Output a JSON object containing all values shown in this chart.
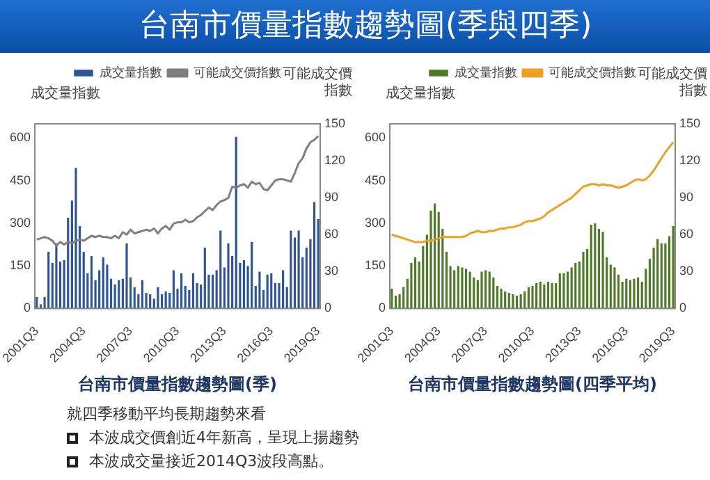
{
  "chart_data": [
    {
      "type": "bar",
      "title": "台南市價量指數趨勢圖(季)",
      "ylabel": "成交量指數",
      "y2label": "可能成交價指數",
      "annotations": [
        "台南市價量指數趨勢圖(季與四季)",
        "就四季移動平均長期趨勢來看",
        "本波成交價創近4年新高，呈現上揚趨勢",
        "本波成交量接近2014Q3波段高點。"
      ],
      "categories": [
        "2001Q3",
        null,
        null,
        null,
        null,
        null,
        null,
        null,
        null,
        null,
        null,
        null,
        "2004Q3",
        null,
        null,
        null,
        null,
        null,
        null,
        null,
        null,
        null,
        null,
        null,
        "2007Q3",
        null,
        null,
        null,
        null,
        null,
        null,
        null,
        null,
        null,
        null,
        null,
        "2010Q3",
        null,
        null,
        null,
        null,
        null,
        null,
        null,
        null,
        null,
        null,
        null,
        "2013Q3",
        null,
        null,
        null,
        null,
        null,
        null,
        null,
        null,
        null,
        null,
        null,
        "2016Q3",
        null,
        null,
        null,
        null,
        null,
        null,
        null,
        null,
        null,
        null,
        null,
        "2019Q3"
      ],
      "series": [
        {
          "name": "成交量指數",
          "color": "#2f5597",
          "values": [
            40,
            15,
            40,
            200,
            160,
            230,
            165,
            170,
            320,
            380,
            495,
            290,
            200,
            125,
            185,
            100,
            135,
            180,
            155,
            105,
            85,
            100,
            105,
            230,
            110,
            75,
            50,
            100,
            55,
            50,
            35,
            75,
            50,
            60,
            55,
            135,
            70,
            125,
            80,
            65,
            125,
            90,
            85,
            215,
            120,
            120,
            135,
            275,
            145,
            230,
            185,
            605,
            160,
            170,
            150,
            235,
            80,
            130,
            65,
            120,
            125,
            90,
            90,
            135,
            75,
            275,
            250,
            275,
            180,
            215,
            245,
            375,
            315
          ]
        },
        {
          "name": "可能成交價指數",
          "type": "line",
          "axis": "y2",
          "color": "#7f7f7f",
          "values": [
            56,
            57,
            58,
            57,
            55,
            51,
            54,
            52,
            54,
            53,
            55,
            56,
            55,
            57,
            59,
            58,
            59,
            58,
            58,
            57,
            59,
            57,
            62,
            60,
            64,
            61,
            62,
            63,
            64,
            63,
            65,
            61,
            65,
            67,
            64,
            69,
            70,
            70,
            72,
            70,
            71,
            74,
            76,
            79,
            82,
            80,
            84,
            87,
            88,
            90,
            99,
            98,
            100,
            101,
            98,
            103,
            101,
            102,
            97,
            96,
            100,
            104,
            105,
            105,
            104,
            103,
            110,
            118,
            122,
            130,
            135,
            137,
            140
          ]
        }
      ],
      "ylim": [
        0,
        650
      ],
      "yticks": [
        0,
        150,
        300,
        450,
        600
      ],
      "y2lim": [
        0,
        150
      ],
      "y2ticks": [
        0,
        30,
        60,
        90,
        120,
        150
      ],
      "legend": "top",
      "marker": "none",
      "grid": false
    },
    {
      "type": "bar",
      "title": "台南市價量指數趨勢圖(四季平均)",
      "ylabel": "成交量指數",
      "y2label": "可能成交價指數",
      "categories": [
        "2001Q3",
        null,
        null,
        null,
        null,
        null,
        null,
        null,
        null,
        null,
        null,
        null,
        "2004Q3",
        null,
        null,
        null,
        null,
        null,
        null,
        null,
        null,
        null,
        null,
        null,
        "2007Q3",
        null,
        null,
        null,
        null,
        null,
        null,
        null,
        null,
        null,
        null,
        null,
        "2010Q3",
        null,
        null,
        null,
        null,
        null,
        null,
        null,
        null,
        null,
        null,
        null,
        "2013Q3",
        null,
        null,
        null,
        null,
        null,
        null,
        null,
        null,
        null,
        null,
        null,
        "2016Q3",
        null,
        null,
        null,
        null,
        null,
        null,
        null,
        null,
        null,
        null,
        null,
        "2019Q3"
      ],
      "series": [
        {
          "name": "成交量指數",
          "color": "#4e7a27",
          "values": [
            70,
            45,
            50,
            75,
            105,
            160,
            180,
            165,
            220,
            260,
            345,
            370,
            340,
            280,
            200,
            150,
            135,
            150,
            145,
            140,
            130,
            110,
            100,
            130,
            135,
            130,
            110,
            80,
            70,
            60,
            55,
            50,
            45,
            50,
            60,
            75,
            80,
            90,
            95,
            85,
            95,
            90,
            90,
            125,
            125,
            130,
            145,
            160,
            165,
            200,
            210,
            295,
            300,
            280,
            270,
            180,
            155,
            145,
            120,
            95,
            105,
            100,
            105,
            110,
            95,
            140,
            175,
            215,
            245,
            230,
            230,
            255,
            290
          ]
        },
        {
          "name": "可能成交價指數",
          "type": "line",
          "axis": "y2",
          "color": "#f0a020",
          "values": [
            60,
            59,
            58,
            57,
            56,
            55,
            54,
            54,
            54,
            55,
            55,
            56,
            57,
            58,
            58,
            58,
            58,
            58,
            58,
            59,
            61,
            62,
            63,
            62,
            62,
            63,
            63,
            64,
            65,
            65,
            66,
            66,
            67,
            68,
            70,
            71,
            71,
            72,
            73,
            75,
            78,
            80,
            82,
            84,
            86,
            88,
            90,
            93,
            96,
            99,
            100,
            101,
            101,
            100,
            101,
            100,
            100,
            99,
            98,
            99,
            100,
            102,
            104,
            105,
            104,
            105,
            108,
            112,
            117,
            122,
            127,
            131,
            135
          ]
        }
      ],
      "ylim": [
        0,
        650
      ],
      "yticks": [
        0,
        150,
        300,
        450,
        600
      ],
      "y2lim": [
        0,
        150
      ],
      "y2ticks": [
        0,
        30,
        60,
        90,
        120,
        150
      ],
      "legend": "top",
      "marker": "none",
      "grid": false
    }
  ]
}
